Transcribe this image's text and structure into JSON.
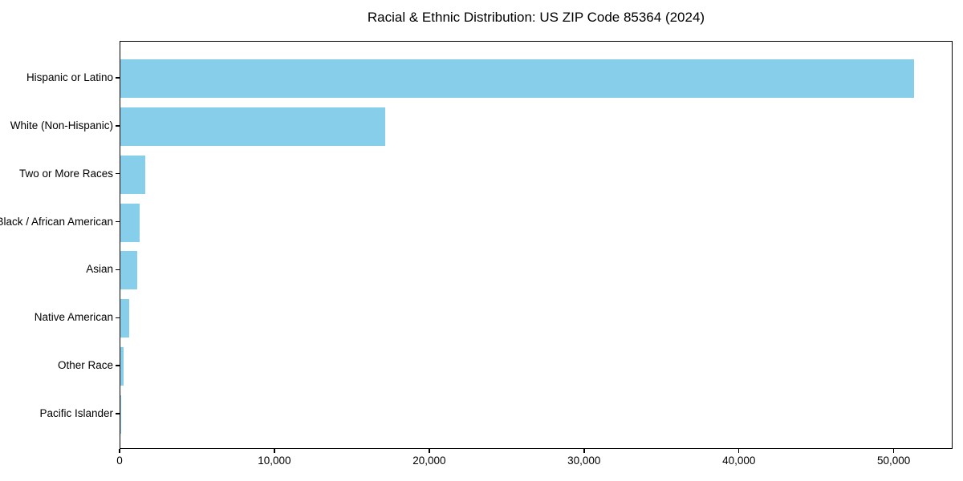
{
  "chart_data": {
    "type": "bar",
    "orientation": "horizontal",
    "title": "Racial & Ethnic Distribution: US ZIP Code 85364 (2024)",
    "categories": [
      "Hispanic or Latino",
      "White (Non-Hispanic)",
      "Two or More Races",
      "Black / African American",
      "Asian",
      "Native American",
      "Other Race",
      "Pacific Islander"
    ],
    "values": [
      51270,
      17090,
      1610,
      1250,
      1090,
      570,
      210,
      30
    ],
    "xlabel": "",
    "ylabel": "",
    "xlim": [
      0,
      53800
    ],
    "x_ticks": [
      0,
      10000,
      20000,
      30000,
      40000,
      50000
    ],
    "x_tick_labels": [
      "0",
      "10,000",
      "20,000",
      "30,000",
      "40,000",
      "50,000"
    ],
    "bar_color": "#87CEEB",
    "grid": false,
    "legend": null,
    "background_color": "#ffffff",
    "spine_color": "#000000"
  }
}
